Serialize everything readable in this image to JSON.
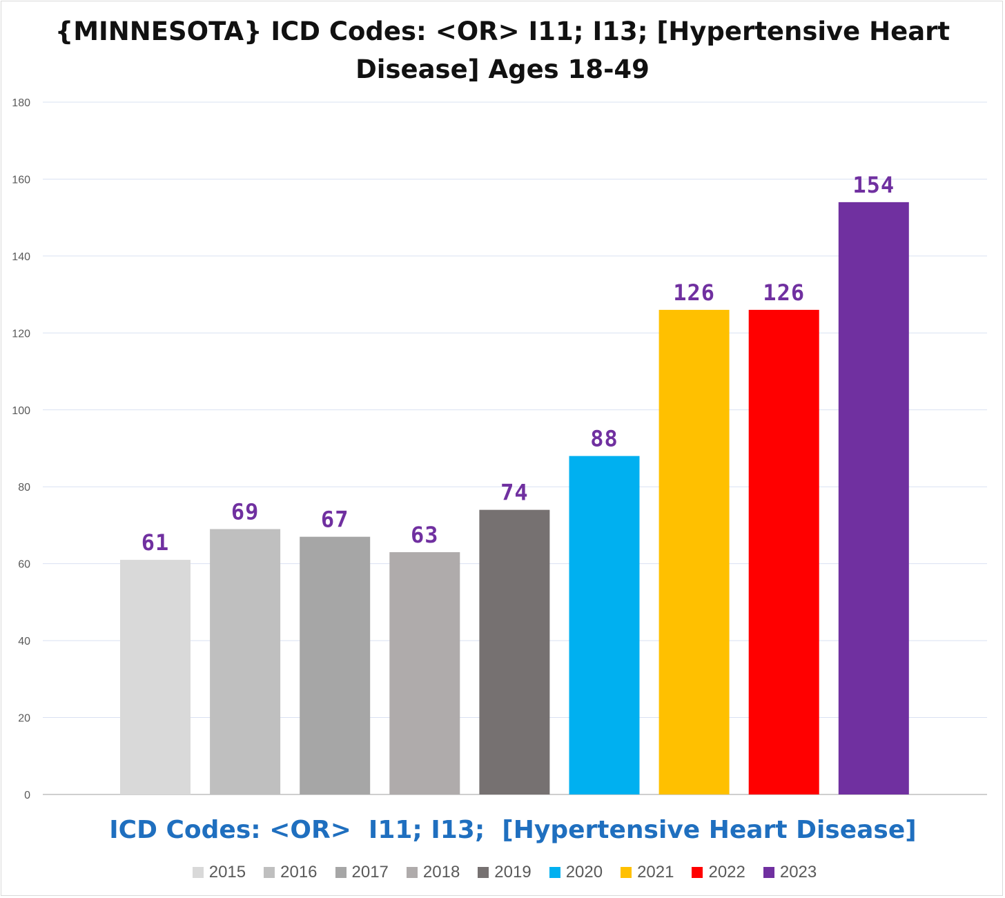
{
  "chart_data": {
    "type": "bar",
    "title": "{MINNESOTA}  ICD Codes: <OR>  I11; I13;  [Hypertensive Heart\nDisease] Ages 18-49",
    "xlabel": "ICD Codes: <OR>  I11; I13;  [Hypertensive Heart Disease]",
    "ylabel": "",
    "ylim": [
      0,
      180
    ],
    "yticks": [
      0,
      20,
      40,
      60,
      80,
      100,
      120,
      140,
      160,
      180
    ],
    "grid": true,
    "legend_position": "bottom",
    "categories": [
      "2015",
      "2016",
      "2017",
      "2018",
      "2019",
      "2020",
      "2021",
      "2022",
      "2023"
    ],
    "values": [
      61,
      69,
      67,
      63,
      74,
      88,
      126,
      126,
      154
    ],
    "colors": [
      "#d9d9d9",
      "#bfbfbf",
      "#a6a6a6",
      "#afabab",
      "#767171",
      "#00b0f0",
      "#ffc000",
      "#ff0000",
      "#7030a0"
    ],
    "label_color": "#7030a0"
  }
}
